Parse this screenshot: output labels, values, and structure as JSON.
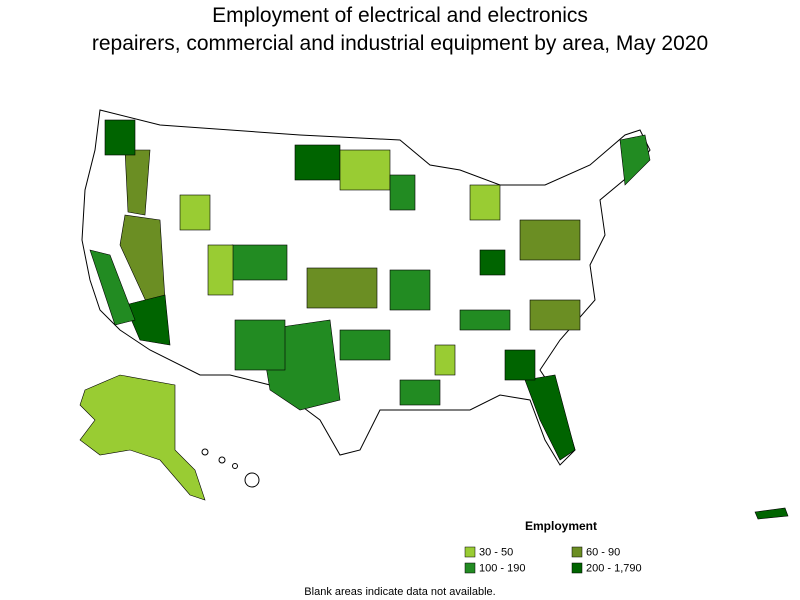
{
  "title": [
    "Employment of electrical and electronics",
    "repairers, commercial and industrial equipment by area, May 2020"
  ],
  "legend": {
    "title": "Employment",
    "items": [
      {
        "label": "30 - 50",
        "color": "#99cc33"
      },
      {
        "label": "60 - 90",
        "color": "#6b8e23"
      },
      {
        "label": "100 - 190",
        "color": "#228b22"
      },
      {
        "label": "200 - 1,790",
        "color": "#006400"
      }
    ]
  },
  "note": "Blank areas indicate data not available."
}
